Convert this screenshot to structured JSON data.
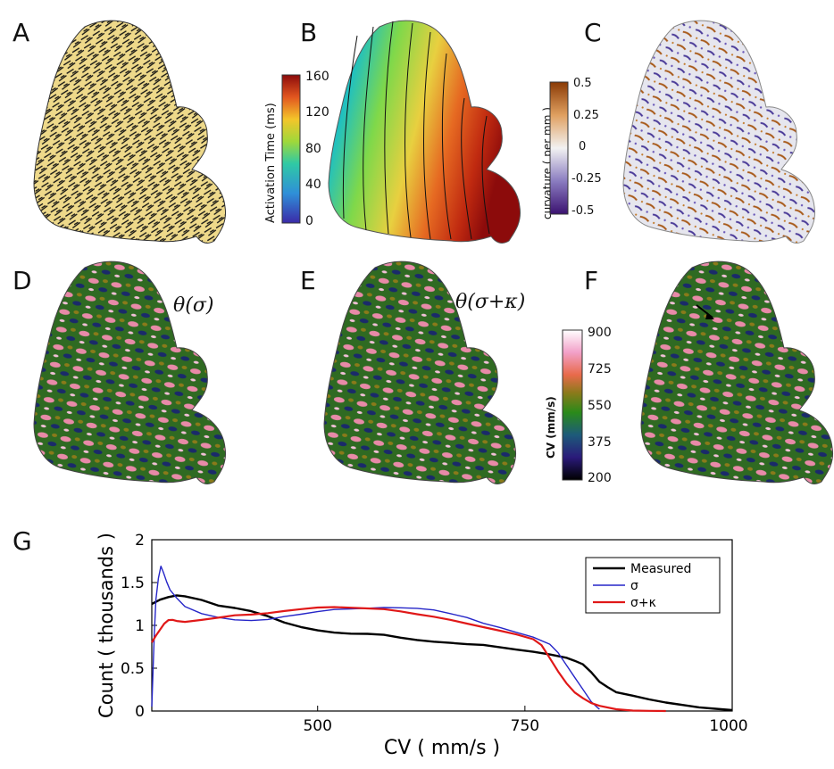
{
  "panels": {
    "a": "A",
    "b": "B",
    "c": "C",
    "d": "D",
    "e": "E",
    "f": "F",
    "g": "G"
  },
  "formulas": {
    "d": "θ(σ)",
    "e": "θ(σ+κ)"
  },
  "colorbars": {
    "activation": {
      "title": "Activation Time (ms)",
      "ticks": [
        "160",
        "120",
        "80",
        "40",
        "0"
      ]
    },
    "curvature": {
      "title": "curvature ( per mm )",
      "ticks": [
        "0.5",
        "0.25",
        "0",
        "-0.25",
        "-0.5"
      ]
    },
    "cv": {
      "title": "CV (mm/s)",
      "ticks": [
        "900",
        "725",
        "550",
        "375",
        "200"
      ]
    }
  },
  "colors": {
    "measured": "#000000",
    "sigma": "#2626c8",
    "sigma_kappa": "#e01818",
    "fiber_bg": "#eed98a"
  },
  "chart_data": {
    "type": "line",
    "xlabel": "CV ( mm/s )",
    "ylabel": "Count ( thousands )",
    "xlim": [
      300,
      1000
    ],
    "ylim": [
      0,
      2
    ],
    "xticks": [
      "500",
      "750",
      "1000"
    ],
    "yticks": [
      "0",
      "0.5",
      "1",
      "1.5",
      "2"
    ],
    "legend_position": "top-right",
    "series": [
      {
        "name": "Measured",
        "x": [
          300,
          310,
          320,
          330,
          340,
          360,
          380,
          400,
          420,
          440,
          460,
          480,
          500,
          520,
          540,
          560,
          580,
          600,
          620,
          640,
          660,
          680,
          700,
          720,
          740,
          760,
          780,
          800,
          810,
          820,
          830,
          840,
          850,
          860,
          880,
          900,
          920,
          940,
          960,
          980,
          1000
        ],
        "y": [
          1.25,
          1.3,
          1.33,
          1.35,
          1.32,
          1.28,
          1.22,
          1.2,
          1.17,
          1.12,
          1.05,
          1.0,
          0.96,
          0.93,
          0.91,
          0.9,
          0.88,
          0.84,
          0.81,
          0.79,
          0.78,
          0.77,
          0.77,
          0.75,
          0.73,
          0.71,
          0.68,
          0.64,
          0.6,
          0.55,
          0.45,
          0.33,
          0.26,
          0.2,
          0.16,
          0.12,
          0.09,
          0.07,
          0.05,
          0.04,
          0.03
        ]
      },
      {
        "name": "σ",
        "x": [
          300,
          303,
          305,
          308,
          311,
          314,
          318,
          322,
          330,
          340,
          360,
          380,
          400,
          420,
          440,
          460,
          480,
          500,
          520,
          540,
          560,
          580,
          600,
          620,
          640,
          660,
          680,
          700,
          720,
          740,
          760,
          780,
          790,
          800,
          810,
          820,
          830,
          838,
          840
        ],
        "y": [
          0.05,
          0.9,
          1.3,
          1.55,
          1.7,
          1.62,
          1.5,
          1.4,
          1.3,
          1.2,
          1.12,
          1.08,
          1.06,
          1.06,
          1.08,
          1.12,
          1.15,
          1.18,
          1.2,
          1.2,
          1.2,
          1.2,
          1.19,
          1.18,
          1.16,
          1.12,
          1.08,
          1.02,
          0.98,
          0.93,
          0.88,
          0.8,
          0.7,
          0.55,
          0.4,
          0.25,
          0.1,
          0.02,
          0.0
        ]
      },
      {
        "name": "σ+κ",
        "x": [
          300,
          305,
          310,
          315,
          320,
          325,
          330,
          340,
          360,
          380,
          400,
          420,
          440,
          460,
          480,
          500,
          520,
          540,
          560,
          580,
          600,
          620,
          640,
          660,
          680,
          700,
          720,
          740,
          760,
          770,
          780,
          790,
          800,
          810,
          820,
          830,
          840,
          860,
          880,
          900,
          920
        ],
        "y": [
          0.8,
          0.88,
          0.95,
          1.02,
          1.07,
          1.08,
          1.07,
          1.06,
          1.08,
          1.1,
          1.12,
          1.12,
          1.13,
          1.15,
          1.17,
          1.19,
          1.2,
          1.2,
          1.2,
          1.2,
          1.18,
          1.15,
          1.12,
          1.08,
          1.03,
          0.98,
          0.93,
          0.88,
          0.82,
          0.75,
          0.6,
          0.45,
          0.32,
          0.22,
          0.16,
          0.11,
          0.08,
          0.04,
          0.02,
          0.01,
          0.0
        ]
      }
    ]
  }
}
